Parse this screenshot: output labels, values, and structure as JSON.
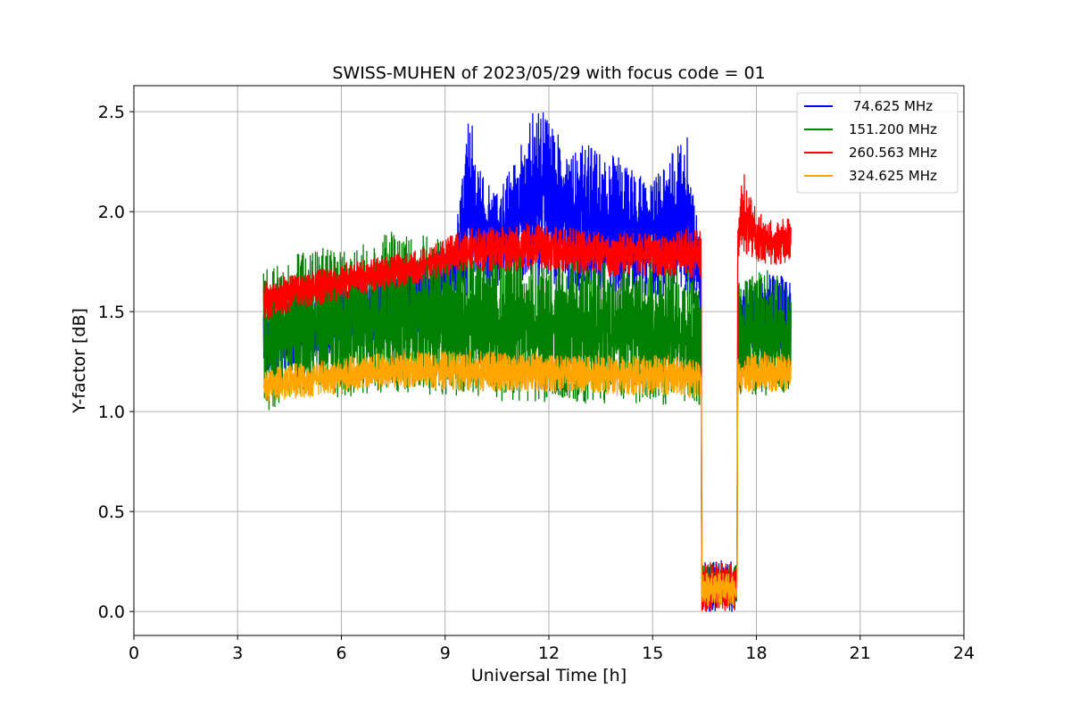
{
  "chart_data": {
    "type": "line",
    "title": "SWISS-MUHEN of 2023/05/29 with focus code = 01",
    "xlabel": "Universal Time [h]",
    "ylabel": "Y-factor [dB]",
    "xlim": [
      0,
      24
    ],
    "ylim": [
      -0.12,
      2.63
    ],
    "xticks": [
      0,
      3,
      6,
      9,
      12,
      15,
      18,
      21,
      24
    ],
    "xtick_labels": [
      "0",
      "3",
      "6",
      "9",
      "12",
      "15",
      "18",
      "21",
      "24"
    ],
    "yticks": [
      0.0,
      0.5,
      1.0,
      1.5,
      2.0,
      2.5
    ],
    "ytick_labels": [
      "0.0",
      "0.5",
      "1.0",
      "1.5",
      "2.0",
      "2.5"
    ],
    "grid": true,
    "legend_position": "top-right",
    "series": [
      {
        "name": " 74.625 MHz",
        "color": "#0000ff",
        "x": [
          3.75,
          4.5,
          5.5,
          6.5,
          7.5,
          8.5,
          9.3,
          9.7,
          10.0,
          10.5,
          11.0,
          11.5,
          12.0,
          12.5,
          13.0,
          13.5,
          14.0,
          14.5,
          15.0,
          15.5,
          16.0,
          16.4,
          16.42,
          17.0,
          17.44,
          17.46,
          18.0,
          18.5,
          19.0
        ],
        "upper": [
          1.55,
          1.58,
          1.62,
          1.68,
          1.72,
          1.76,
          1.9,
          2.51,
          2.22,
          2.1,
          2.25,
          2.5,
          2.5,
          2.32,
          2.35,
          2.3,
          2.28,
          2.2,
          2.15,
          2.3,
          2.38,
          1.8,
          0.26,
          0.26,
          0.25,
          1.6,
          1.65,
          1.7,
          1.65
        ],
        "lower": [
          1.18,
          1.22,
          1.28,
          1.32,
          1.36,
          1.4,
          1.5,
          1.6,
          1.62,
          1.62,
          1.65,
          1.65,
          1.6,
          1.6,
          1.58,
          1.6,
          1.6,
          1.58,
          1.58,
          1.58,
          1.55,
          1.5,
          0.0,
          0.0,
          0.0,
          1.3,
          1.3,
          1.3,
          1.3
        ]
      },
      {
        "name": "151.200 MHz",
        "color": "#008000",
        "x": [
          3.75,
          4.5,
          5.5,
          6.5,
          7.5,
          8.5,
          9.5,
          10.5,
          11.5,
          12.5,
          13.5,
          14.5,
          15.5,
          16.0,
          16.4,
          16.42,
          17.0,
          17.44,
          17.46,
          18.0,
          18.5,
          19.0
        ],
        "upper": [
          1.72,
          1.78,
          1.82,
          1.86,
          1.9,
          1.88,
          1.86,
          1.82,
          1.8,
          1.78,
          1.76,
          1.74,
          1.76,
          1.73,
          1.6,
          0.24,
          0.24,
          0.24,
          1.65,
          1.7,
          1.72,
          1.6
        ],
        "lower": [
          0.97,
          1.07,
          1.07,
          1.08,
          1.08,
          1.08,
          1.06,
          1.05,
          1.05,
          1.04,
          1.04,
          1.04,
          1.03,
          1.03,
          1.02,
          0.05,
          0.05,
          0.05,
          1.08,
          1.08,
          1.08,
          1.1
        ]
      },
      {
        "name": "260.563 MHz",
        "color": "#ff0000",
        "x": [
          3.75,
          4.5,
          5.5,
          6.5,
          7.5,
          8.5,
          9.0,
          9.5,
          10.5,
          11.5,
          12.5,
          13.5,
          14.5,
          15.5,
          16.0,
          16.4,
          16.42,
          17.0,
          17.44,
          17.46,
          17.6,
          18.0,
          18.5,
          19.0
        ],
        "upper": [
          1.65,
          1.68,
          1.72,
          1.76,
          1.78,
          1.82,
          1.86,
          1.92,
          1.92,
          1.94,
          1.92,
          1.9,
          1.9,
          1.9,
          1.93,
          1.9,
          0.24,
          0.25,
          0.24,
          1.94,
          2.22,
          2.0,
          1.95,
          1.99
        ],
        "lower": [
          1.45,
          1.5,
          1.54,
          1.58,
          1.62,
          1.65,
          1.68,
          1.7,
          1.7,
          1.7,
          1.7,
          1.68,
          1.68,
          1.68,
          1.67,
          1.66,
          0.0,
          0.0,
          0.0,
          1.75,
          1.8,
          1.75,
          1.73,
          1.75
        ]
      },
      {
        "name": "324.625 MHz",
        "color": "#ffa500",
        "x": [
          3.75,
          4.5,
          5.5,
          6.5,
          7.5,
          8.5,
          9.5,
          10.5,
          11.5,
          12.5,
          13.5,
          14.5,
          15.5,
          16.0,
          16.4,
          16.42,
          17.0,
          17.44,
          17.46,
          18.0,
          18.5,
          19.0
        ],
        "upper": [
          1.2,
          1.24,
          1.26,
          1.28,
          1.3,
          1.3,
          1.3,
          1.3,
          1.3,
          1.28,
          1.28,
          1.28,
          1.28,
          1.26,
          1.26,
          0.2,
          0.2,
          0.2,
          1.28,
          1.3,
          1.3,
          1.28
        ],
        "lower": [
          1.05,
          1.06,
          1.08,
          1.1,
          1.12,
          1.12,
          1.1,
          1.1,
          1.1,
          1.1,
          1.08,
          1.08,
          1.08,
          1.07,
          1.07,
          0.03,
          0.03,
          0.03,
          1.08,
          1.1,
          1.1,
          1.1
        ]
      }
    ]
  }
}
